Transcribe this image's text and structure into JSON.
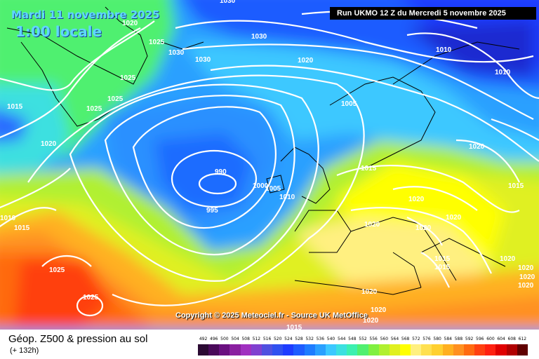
{
  "header": {
    "date": "Mardi 11 novembre 2025",
    "time": "1:00 locale",
    "run": "Run UKMO 12 Z du Mercredi 5 novembre 2025"
  },
  "copyright": "Copyright © 2025 Meteociel.fr - Source UK MetOffice",
  "footer": {
    "title": "Géop. Z500 & pression au sol",
    "subtitle": "(+ 132h)"
  },
  "legend": {
    "values": [
      "492",
      "496",
      "500",
      "504",
      "508",
      "512",
      "516",
      "520",
      "524",
      "528",
      "532",
      "536",
      "540",
      "544",
      "548",
      "552",
      "556",
      "560",
      "564",
      "568",
      "572",
      "576",
      "580",
      "584",
      "588",
      "592",
      "596",
      "600",
      "604",
      "608",
      "612"
    ],
    "colors": [
      "#2b0a33",
      "#4a0a5a",
      "#6a1080",
      "#8a20a0",
      "#a030c0",
      "#8040d0",
      "#5050e0",
      "#3050f0",
      "#1e3cff",
      "#1e5cff",
      "#1e7cff",
      "#2aa0ff",
      "#3cc8ff",
      "#3ce0e0",
      "#3cf0b0",
      "#50f070",
      "#80f040",
      "#b0f030",
      "#e0f020",
      "#ffff00",
      "#fff080",
      "#ffe050",
      "#ffd030",
      "#ffb020",
      "#ff9020",
      "#ff6a10",
      "#ff4010",
      "#ff2010",
      "#e00000",
      "#b00000",
      "#600000"
    ]
  },
  "isobars": [
    {
      "text": "1030"
    },
    {
      "text": "1020"
    },
    {
      "text": "1025"
    },
    {
      "text": "1030"
    },
    {
      "text": "1030"
    },
    {
      "text": "1030"
    },
    {
      "text": "1020"
    },
    {
      "text": "1010"
    },
    {
      "text": "1010"
    },
    {
      "text": "1025"
    },
    {
      "text": "1025"
    },
    {
      "text": "1025"
    },
    {
      "text": "1015"
    },
    {
      "text": "1005"
    },
    {
      "text": "1020"
    },
    {
      "text": "990"
    },
    {
      "text": "995"
    },
    {
      "text": "1000"
    },
    {
      "text": "1005"
    },
    {
      "text": "1010"
    },
    {
      "text": "1015"
    },
    {
      "text": "1020"
    },
    {
      "text": "1015"
    },
    {
      "text": "1020"
    },
    {
      "text": "1020"
    },
    {
      "text": "1020"
    },
    {
      "text": "1020"
    },
    {
      "text": "1015"
    },
    {
      "text": "1015"
    },
    {
      "text": "1020"
    },
    {
      "text": "1020"
    },
    {
      "text": "1010"
    },
    {
      "text": "1015"
    },
    {
      "text": "1025"
    },
    {
      "text": "1025"
    },
    {
      "text": "1020"
    },
    {
      "text": "1020"
    },
    {
      "text": "1020"
    },
    {
      "text": "1015"
    },
    {
      "text": "1020"
    },
    {
      "text": "1020"
    }
  ]
}
